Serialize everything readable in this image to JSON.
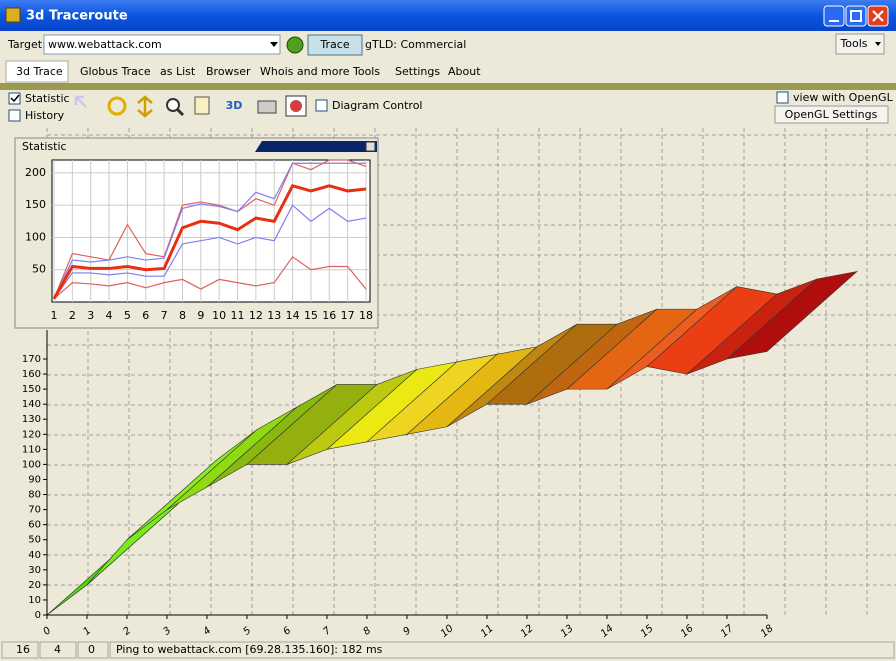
{
  "window": {
    "title": "3d Traceroute"
  },
  "toolbar": {
    "target_label": "Target:",
    "target_value": "www.webattack.com",
    "trace_button": "Trace",
    "gtld": "gTLD: Commercial",
    "tools_button": "Tools"
  },
  "menu": [
    "3d Trace",
    "Globus Trace",
    "as List",
    "Browser",
    "Whois and more",
    "Tools",
    "Settings",
    "About"
  ],
  "options": {
    "statistic": "Statistic",
    "history": "History",
    "button_3d": "3D",
    "diagram_control": "Diagram Control",
    "view_opengl": "view with OpenGL",
    "opengl_settings": "OpenGL Settings"
  },
  "statistic_chart": {
    "type": "line",
    "title": "Statistic",
    "x": [
      1,
      2,
      3,
      4,
      5,
      6,
      7,
      8,
      9,
      10,
      11,
      12,
      13,
      14,
      15,
      16,
      17,
      18
    ],
    "ylim": [
      0,
      220
    ],
    "yticks": [
      50,
      100,
      150,
      200
    ],
    "series": [
      {
        "color": "#e06060",
        "values": [
          5,
          75,
          70,
          65,
          120,
          75,
          70,
          150,
          155,
          150,
          140,
          160,
          150,
          215,
          205,
          220,
          220,
          210
        ]
      },
      {
        "color": "#e06060",
        "values": [
          5,
          30,
          28,
          25,
          30,
          22,
          30,
          35,
          20,
          35,
          30,
          25,
          30,
          70,
          50,
          55,
          55,
          20
        ]
      },
      {
        "color": "#7f7ff0",
        "values": [
          5,
          65,
          62,
          65,
          70,
          65,
          68,
          145,
          152,
          148,
          140,
          170,
          160,
          215,
          215,
          215,
          215,
          215
        ]
      },
      {
        "color": "#7f7ff0",
        "values": [
          5,
          45,
          45,
          42,
          45,
          40,
          40,
          90,
          95,
          100,
          90,
          100,
          95,
          150,
          125,
          145,
          125,
          130
        ]
      },
      {
        "color": "#e83010",
        "values": [
          5,
          55,
          52,
          52,
          55,
          50,
          52,
          115,
          125,
          122,
          112,
          130,
          125,
          180,
          172,
          180,
          172,
          175
        ]
      }
    ]
  },
  "main_chart": {
    "type": "surface",
    "xticks": [
      0,
      1,
      2,
      3,
      4,
      5,
      6,
      7,
      8,
      9,
      10,
      11,
      12,
      13,
      14,
      15,
      16,
      17,
      18
    ],
    "ylim": [
      0,
      170
    ],
    "yticks": [
      0,
      10,
      20,
      30,
      40,
      50,
      60,
      70,
      80,
      90,
      100,
      110,
      120,
      130,
      140,
      150,
      160,
      170
    ],
    "values": [
      0,
      20,
      50,
      70,
      85,
      100,
      100,
      110,
      115,
      120,
      125,
      140,
      140,
      150,
      150,
      165,
      160,
      170,
      175
    ]
  },
  "status": {
    "cell1": "16",
    "cell2": "4",
    "cell3": "0",
    "message": "Ping to webattack.com [69.28.135.160]: 182 ms"
  }
}
